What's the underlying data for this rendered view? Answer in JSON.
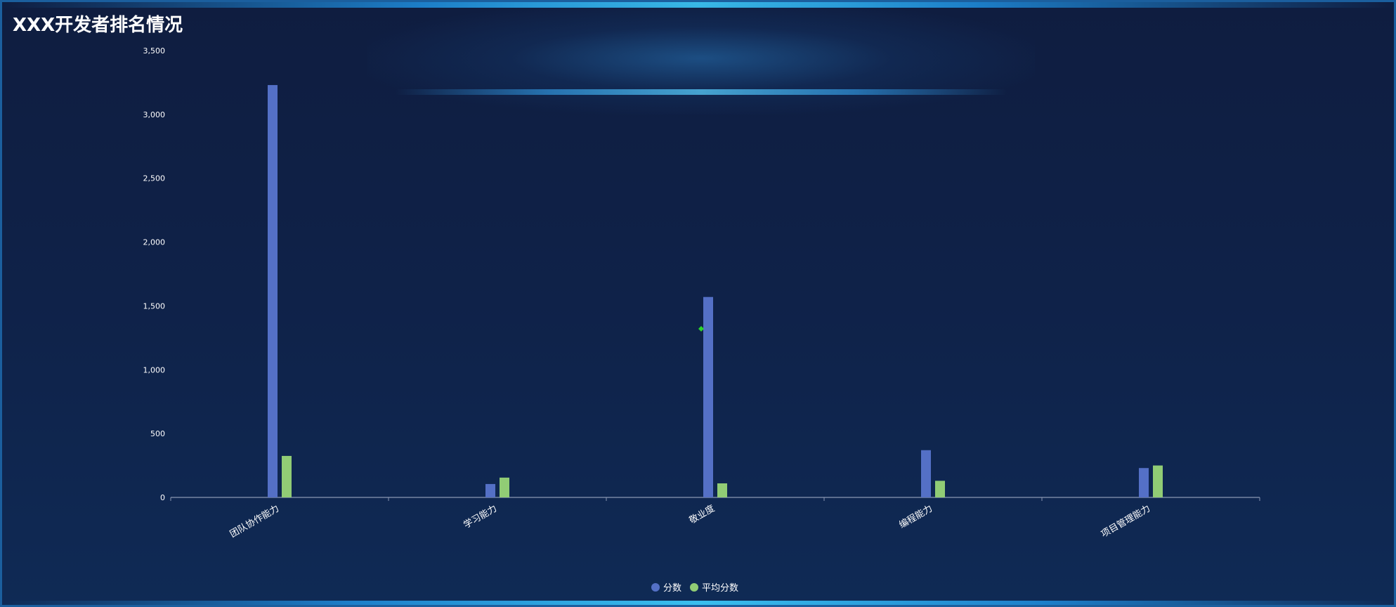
{
  "title": "XXX开发者排名情况",
  "chart_data": {
    "type": "bar",
    "categories": [
      "团队协作能力",
      "学习能力",
      "敬业度",
      "编程能力",
      "项目管理能力"
    ],
    "series": [
      {
        "name": "分数",
        "color": "#5470c6",
        "values": [
          3230,
          105,
          1570,
          370,
          230
        ]
      },
      {
        "name": "平均分数",
        "color": "#91cc75",
        "values": [
          325,
          155,
          110,
          130,
          250
        ]
      }
    ],
    "ylim": [
      0,
      3500
    ],
    "yticks": [
      0,
      500,
      1000,
      1500,
      2000,
      2500,
      3000,
      3500
    ],
    "ytick_labels": [
      "0",
      "500",
      "1,000",
      "1,500",
      "2,000",
      "2,500",
      "3,000",
      "3,500"
    ],
    "legend_position": "bottom-center",
    "grid": false
  }
}
